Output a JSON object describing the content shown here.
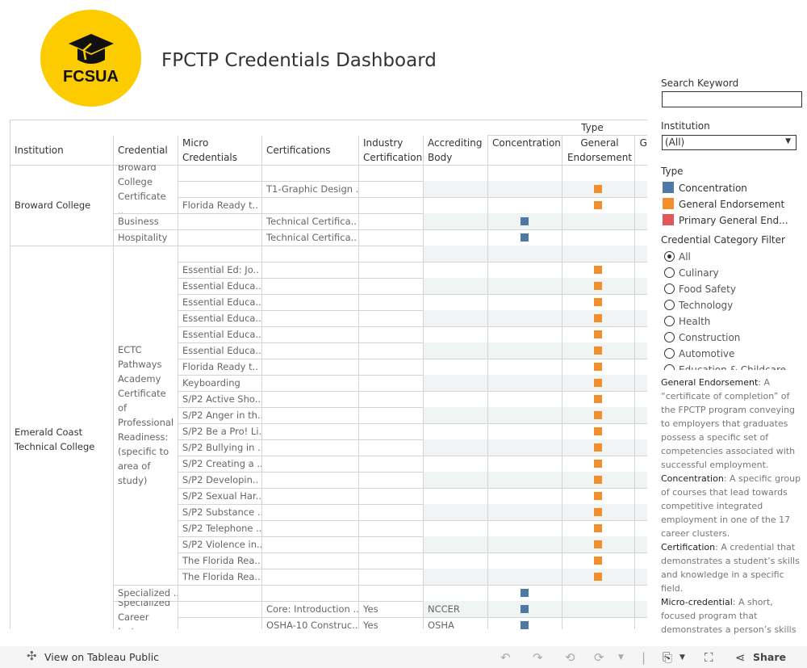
{
  "header": {
    "logo_text": "FCSUA",
    "title": "FPCTP Credentials Dashboard"
  },
  "table": {
    "group_header": "Type",
    "columns": [
      "Institution",
      "Credential",
      "Micro Credentials",
      "Certifications",
      "Industry Certification",
      "Accrediting Body",
      "Concentration",
      "General Endorsement",
      "Ge"
    ],
    "institutions": [
      {
        "name": "Broward College",
        "credentials": [
          {
            "name": "Broward College Certificate ..",
            "rows": [
              {
                "micro": "",
                "cert": "",
                "industry": "",
                "accrediting": "",
                "type": ""
              },
              {
                "micro": "",
                "cert": "T1-Graphic Design ..",
                "industry": "",
                "accrediting": "",
                "type": "General Endorsement"
              },
              {
                "micro": "Florida Ready t..",
                "cert": "",
                "industry": "",
                "accrediting": "",
                "type": "General Endorsement"
              }
            ]
          },
          {
            "name": "Business",
            "rows": [
              {
                "micro": "",
                "cert": "Technical Certifica..",
                "industry": "",
                "accrediting": "",
                "type": "Concentration"
              }
            ]
          },
          {
            "name": "Hospitality",
            "rows": [
              {
                "micro": "",
                "cert": "Technical Certifica..",
                "industry": "",
                "accrediting": "",
                "type": "Concentration"
              }
            ]
          }
        ]
      },
      {
        "name": "Emerald Coast Technical College",
        "credentials": [
          {
            "name": "ECTC Pathways Academy Certificate of Professional Readiness: (specific to area of study)",
            "rows": [
              {
                "micro": "",
                "cert": "",
                "industry": "",
                "accrediting": "",
                "type": ""
              },
              {
                "micro": "Essential Ed: Jo..",
                "cert": "",
                "industry": "",
                "accrediting": "",
                "type": "General Endorsement"
              },
              {
                "micro": "Essential Educa..",
                "cert": "",
                "industry": "",
                "accrediting": "",
                "type": "General Endorsement"
              },
              {
                "micro": "Essential Educa..",
                "cert": "",
                "industry": "",
                "accrediting": "",
                "type": "General Endorsement"
              },
              {
                "micro": "Essential Educa..",
                "cert": "",
                "industry": "",
                "accrediting": "",
                "type": "General Endorsement"
              },
              {
                "micro": "Essential Educa..",
                "cert": "",
                "industry": "",
                "accrediting": "",
                "type": "General Endorsement"
              },
              {
                "micro": "Essential Educa..",
                "cert": "",
                "industry": "",
                "accrediting": "",
                "type": "General Endorsement"
              },
              {
                "micro": "Florida Ready t..",
                "cert": "",
                "industry": "",
                "accrediting": "",
                "type": "General Endorsement"
              },
              {
                "micro": "Keyboarding",
                "cert": "",
                "industry": "",
                "accrediting": "",
                "type": "General Endorsement"
              },
              {
                "micro": "S/P2 Active Sho..",
                "cert": "",
                "industry": "",
                "accrediting": "",
                "type": "General Endorsement"
              },
              {
                "micro": "S/P2 Anger in th..",
                "cert": "",
                "industry": "",
                "accrediting": "",
                "type": "General Endorsement"
              },
              {
                "micro": "S/P2 Be a Pro! Li..",
                "cert": "",
                "industry": "",
                "accrediting": "",
                "type": "General Endorsement"
              },
              {
                "micro": "S/P2 Bullying in ..",
                "cert": "",
                "industry": "",
                "accrediting": "",
                "type": "General Endorsement"
              },
              {
                "micro": "S/P2 Creating a ..",
                "cert": "",
                "industry": "",
                "accrediting": "",
                "type": "General Endorsement"
              },
              {
                "micro": "S/P2 Developin..",
                "cert": "",
                "industry": "",
                "accrediting": "",
                "type": "General Endorsement"
              },
              {
                "micro": "S/P2 Sexual Har..",
                "cert": "",
                "industry": "",
                "accrediting": "",
                "type": "General Endorsement"
              },
              {
                "micro": "S/P2 Substance ..",
                "cert": "",
                "industry": "",
                "accrediting": "",
                "type": "General Endorsement"
              },
              {
                "micro": "S/P2 Telephone ..",
                "cert": "",
                "industry": "",
                "accrediting": "",
                "type": "General Endorsement"
              },
              {
                "micro": "S/P2 Violence in..",
                "cert": "",
                "industry": "",
                "accrediting": "",
                "type": "General Endorsement"
              },
              {
                "micro": "The Florida Rea..",
                "cert": "",
                "industry": "",
                "accrediting": "",
                "type": "General Endorsement"
              },
              {
                "micro": "The Florida Rea..",
                "cert": "",
                "industry": "",
                "accrediting": "",
                "type": "General Endorsement"
              }
            ]
          },
          {
            "name": "Specialized ..",
            "rows": [
              {
                "micro": "",
                "cert": "",
                "industry": "",
                "accrediting": "",
                "type": "Concentration"
              }
            ]
          },
          {
            "name": "Specialized Career Inst..",
            "rows": [
              {
                "micro": "",
                "cert": "Core: Introduction ..",
                "industry": "Yes",
                "accrediting": "NCCER",
                "type": "Concentration"
              },
              {
                "micro": "",
                "cert": "OSHA-10 Construc..",
                "industry": "Yes",
                "accrediting": "OSHA",
                "type": "Concentration"
              }
            ]
          }
        ]
      }
    ]
  },
  "filters": {
    "search_label": "Search Keyword",
    "search_value": "",
    "institution_label": "Institution",
    "institution_value": "(All)",
    "type_label": "Type",
    "type_legend": [
      {
        "label": "Concentration",
        "color": "#4e79a7"
      },
      {
        "label": "General Endorsement",
        "color": "#f28e2b"
      },
      {
        "label": "Primary General End...",
        "color": "#e15759"
      }
    ],
    "category_label": "Credential Category Filter",
    "categories": [
      "All",
      "Culinary",
      "Food Safety",
      "Technology",
      "Health",
      "Construction",
      "Automotive",
      "Education & Childcare"
    ],
    "category_selected": "All"
  },
  "definitions": [
    {
      "term": "General Endorsement",
      "text": ": A “certificate of completion” of the FPCTP program conveying to employers that graduates possess a specific set of competencies associated with successful employment."
    },
    {
      "term": "Concentration",
      "text": ": A specific group of courses that lead towards competitive integrated employment in one of the 17 career clusters."
    },
    {
      "term": "Certification",
      "text": ": A credential that demonstrates a student’s skills and knowledge in a specific field."
    },
    {
      "term": "Micro-credential",
      "text": ": A short, focused program that demonstrates a person’s skills"
    }
  ],
  "footer": {
    "view_label": "View on Tableau Public",
    "share_label": "Share"
  },
  "colors": {
    "concentration": "#4e79a7",
    "general_endorsement": "#f28e2b",
    "band": "#f1f4f5",
    "logo": "#fccb00"
  }
}
